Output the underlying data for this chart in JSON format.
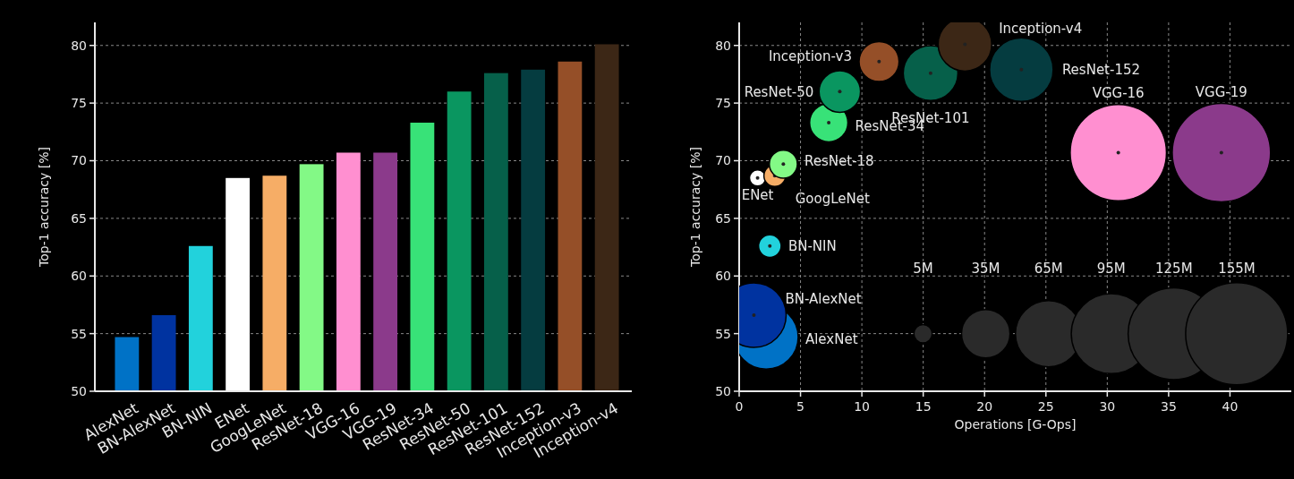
{
  "chart_data": [
    {
      "type": "bar",
      "categories": [
        "AlexNet",
        "BN-AlexNet",
        "BN-NIN",
        "ENet",
        "GoogLeNet",
        "ResNet-18",
        "VGG-16",
        "VGG-19",
        "ResNet-34",
        "ResNet-50",
        "ResNet-101",
        "ResNet-152",
        "Inception-v3",
        "Inception-v4"
      ],
      "values": [
        54.7,
        56.6,
        62.6,
        68.5,
        68.7,
        69.7,
        70.7,
        70.7,
        73.3,
        76.0,
        77.6,
        77.9,
        78.6,
        80.1
      ],
      "colors": [
        "#0072c6",
        "#0033a0",
        "#22d2dc",
        "#ffffff",
        "#f6ad66",
        "#83f986",
        "#ff8fd0",
        "#8b3a8b",
        "#38e278",
        "#0a9660",
        "#06604a",
        "#053c40",
        "#954f28",
        "#3c2716"
      ],
      "ylabel": "Top-1 accuracy [%]",
      "ylim": [
        50,
        82
      ],
      "yticks": [
        50,
        55,
        60,
        65,
        70,
        75,
        80
      ],
      "grid": "y"
    },
    {
      "type": "bubble",
      "xlabel": "Operations [G-Ops]",
      "ylabel": "Top-1 accuracy [%]",
      "xlim": [
        0,
        45
      ],
      "xticks": [
        0,
        5,
        10,
        15,
        20,
        25,
        30,
        35,
        40
      ],
      "ylim": [
        50,
        82
      ],
      "yticks": [
        50,
        55,
        60,
        65,
        70,
        75,
        80
      ],
      "grid": true,
      "size_legend": [
        {
          "value": 5,
          "label": "5M"
        },
        {
          "value": 35,
          "label": "35M"
        },
        {
          "value": 65,
          "label": "65M"
        },
        {
          "value": 95,
          "label": "95M"
        },
        {
          "value": 125,
          "label": "125M"
        },
        {
          "value": 155,
          "label": "155M"
        }
      ],
      "series": [
        {
          "name": "AlexNet",
          "color": "#0072c6",
          "x": [
            2.2
          ],
          "values": [
            54.7
          ],
          "sizes": [
            61
          ]
        },
        {
          "name": "BN-AlexNet",
          "color": "#0033a0",
          "x": [
            1.2
          ],
          "values": [
            56.6
          ],
          "sizes": [
            62
          ]
        },
        {
          "name": "BN-NIN",
          "color": "#22d2dc",
          "x": [
            2.5
          ],
          "values": [
            62.6
          ],
          "sizes": [
            7.6
          ]
        },
        {
          "name": "ENet",
          "color": "#ffffff",
          "x": [
            1.5
          ],
          "values": [
            68.5
          ],
          "sizes": [
            3.9
          ]
        },
        {
          "name": "GoogLeNet",
          "color": "#f6ad66",
          "x": [
            2.9
          ],
          "values": [
            68.7
          ],
          "sizes": [
            7
          ]
        },
        {
          "name": "ResNet-18",
          "color": "#83f986",
          "x": [
            3.6
          ],
          "values": [
            69.7
          ],
          "sizes": [
            11.7
          ]
        },
        {
          "name": "VGG-16",
          "color": "#ff8fd0",
          "x": [
            30.9
          ],
          "values": [
            70.7
          ],
          "sizes": [
            138
          ]
        },
        {
          "name": "VGG-19",
          "color": "#8b3a8b",
          "x": [
            39.3
          ],
          "values": [
            70.7
          ],
          "sizes": [
            144
          ]
        },
        {
          "name": "ResNet-34",
          "color": "#38e278",
          "x": [
            7.3
          ],
          "values": [
            73.3
          ],
          "sizes": [
            21.8
          ]
        },
        {
          "name": "ResNet-50",
          "color": "#0a9660",
          "x": [
            8.2
          ],
          "values": [
            76.0
          ],
          "sizes": [
            25.6
          ]
        },
        {
          "name": "ResNet-101",
          "color": "#06604a",
          "x": [
            15.6
          ],
          "values": [
            77.6
          ],
          "sizes": [
            44.5
          ]
        },
        {
          "name": "ResNet-152",
          "color": "#053c40",
          "x": [
            23.0
          ],
          "values": [
            77.9
          ],
          "sizes": [
            60.2
          ]
        },
        {
          "name": "Inception-v3",
          "color": "#954f28",
          "x": [
            11.4
          ],
          "values": [
            78.6
          ],
          "sizes": [
            23.8
          ]
        },
        {
          "name": "Inception-v4",
          "color": "#3c2716",
          "x": [
            18.4
          ],
          "values": [
            80.1
          ],
          "sizes": [
            42.7
          ]
        }
      ]
    }
  ]
}
